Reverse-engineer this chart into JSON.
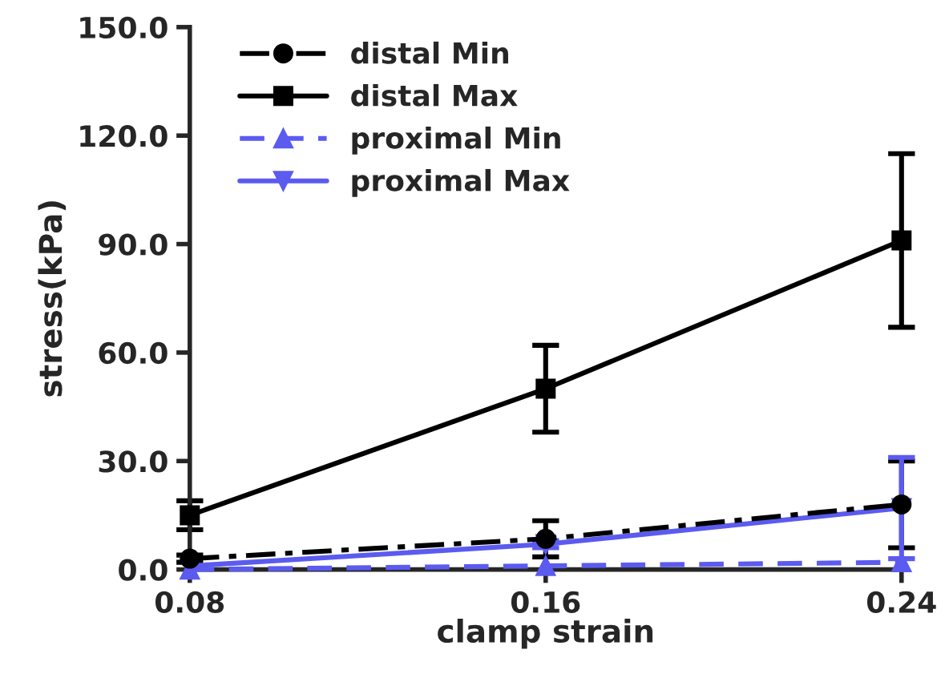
{
  "chart_data": {
    "type": "line",
    "xlabel": "clamp strain",
    "ylabel": "stress(kPa)",
    "x": [
      0.08,
      0.16,
      0.24
    ],
    "series": [
      {
        "name": "distal Min",
        "color": "#000000",
        "marker": "circle",
        "line_style": "dashdot",
        "values": [
          3,
          8.5,
          18
        ],
        "errors": [
          1,
          5,
          12
        ]
      },
      {
        "name": "distal Max",
        "color": "#000000",
        "marker": "square",
        "line_style": "solid",
        "values": [
          15,
          50,
          91
        ],
        "errors": [
          4,
          12,
          24
        ]
      },
      {
        "name": "proximal Min",
        "color": "#5b5bf0",
        "marker": "triangle",
        "line_style": "dashed",
        "values": [
          0,
          1,
          2
        ],
        "errors": [
          null,
          null,
          null
        ]
      },
      {
        "name": "proximal Max",
        "color": "#5b5bf0",
        "marker": "triangle_down",
        "line_style": "solid",
        "values": [
          1,
          7,
          17
        ],
        "errors": [
          null,
          1,
          14
        ]
      }
    ],
    "xlim": [
      0.08,
      0.24
    ],
    "xticks": [
      0.08,
      0.16,
      0.24
    ],
    "ylim": [
      0,
      150
    ],
    "yticks": [
      {
        "value": 0,
        "label": "0.0"
      },
      {
        "value": 30,
        "label": "30.0"
      },
      {
        "value": 60,
        "label": "60.0"
      },
      {
        "value": 90,
        "label": "90.0"
      },
      {
        "value": 120,
        "label": "120.0"
      },
      {
        "value": 150,
        "label": "150.0"
      }
    ],
    "grid": false,
    "legend": "top left"
  }
}
